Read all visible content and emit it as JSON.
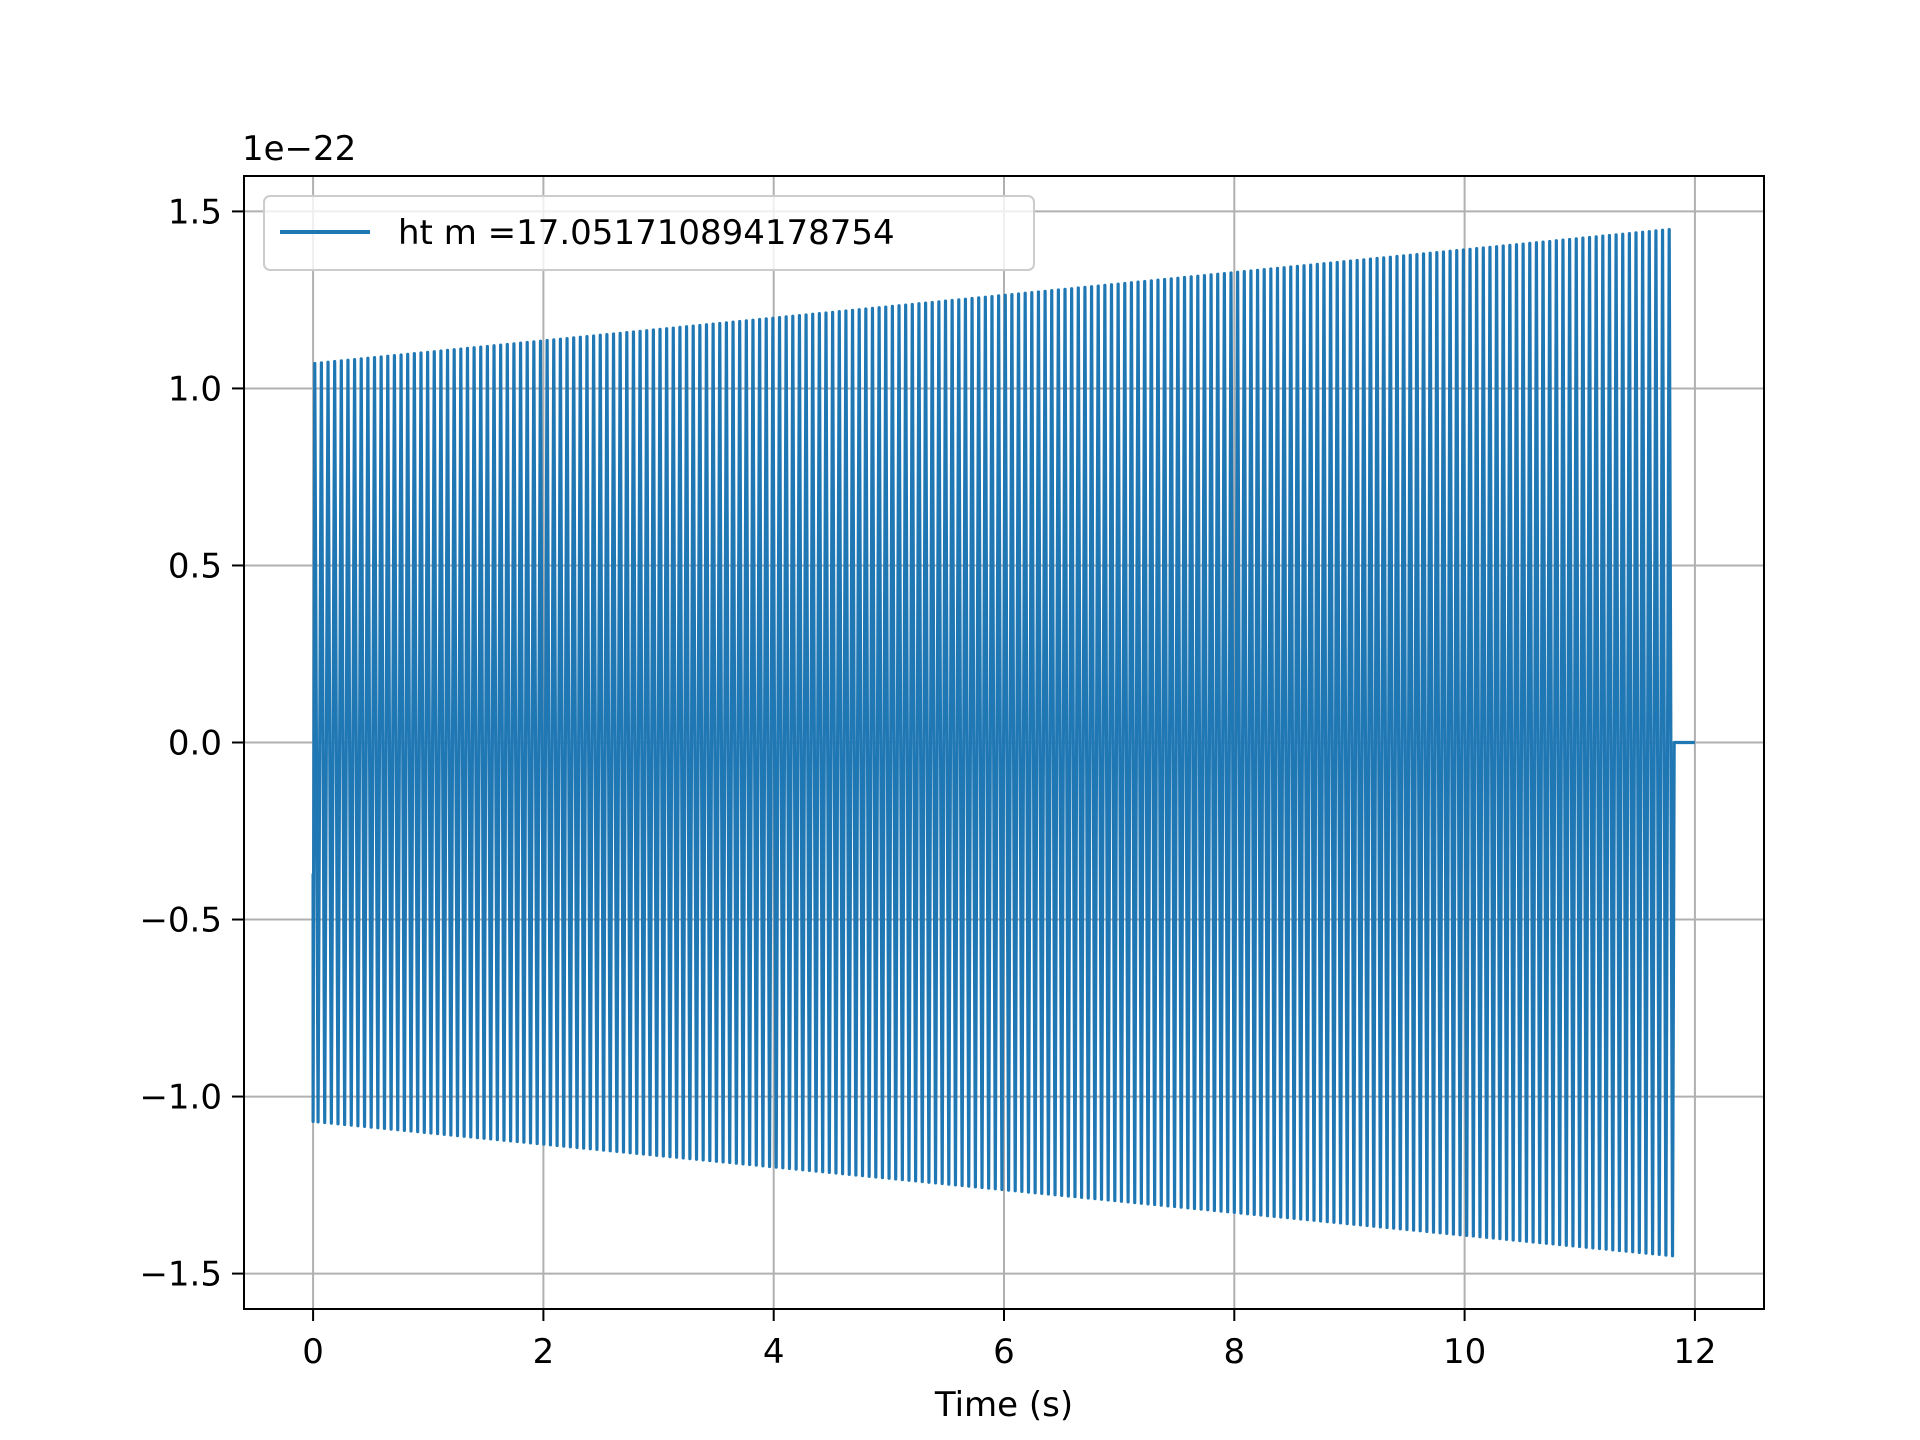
{
  "chart_data": {
    "type": "line",
    "title": "",
    "xlabel": "Time (s)",
    "ylabel": "",
    "y_offset_label": "1e−22",
    "xlim": [
      -0.6,
      12.6
    ],
    "ylim": [
      -1.6,
      1.6
    ],
    "x_ticks": [
      {
        "value": 0,
        "label": "0"
      },
      {
        "value": 2,
        "label": "2"
      },
      {
        "value": 4,
        "label": "4"
      },
      {
        "value": 6,
        "label": "6"
      },
      {
        "value": 8,
        "label": "8"
      },
      {
        "value": 10,
        "label": "10"
      },
      {
        "value": 12,
        "label": "12"
      }
    ],
    "y_ticks": [
      {
        "value": 1.5,
        "label": "1.5"
      },
      {
        "value": 1.0,
        "label": "1.0"
      },
      {
        "value": 0.5,
        "label": "0.5"
      },
      {
        "value": 0.0,
        "label": "0.0"
      },
      {
        "value": -0.5,
        "label": "−0.5"
      },
      {
        "value": -1.0,
        "label": "−1.0"
      },
      {
        "value": -1.5,
        "label": "−1.5"
      }
    ],
    "grid": true,
    "legend_position": "top-left",
    "series": [
      {
        "name": "ht m =17.051710894178754",
        "color": "#1f77b4",
        "signal": {
          "start_time": 0.0,
          "start_value": -0.37,
          "end_time": 11.82,
          "initial_amplitude": 1.07,
          "final_amplitude": 1.45,
          "cycle_count": 205,
          "tail_end_time": 12.0,
          "tail_value": 0.0
        }
      }
    ]
  }
}
